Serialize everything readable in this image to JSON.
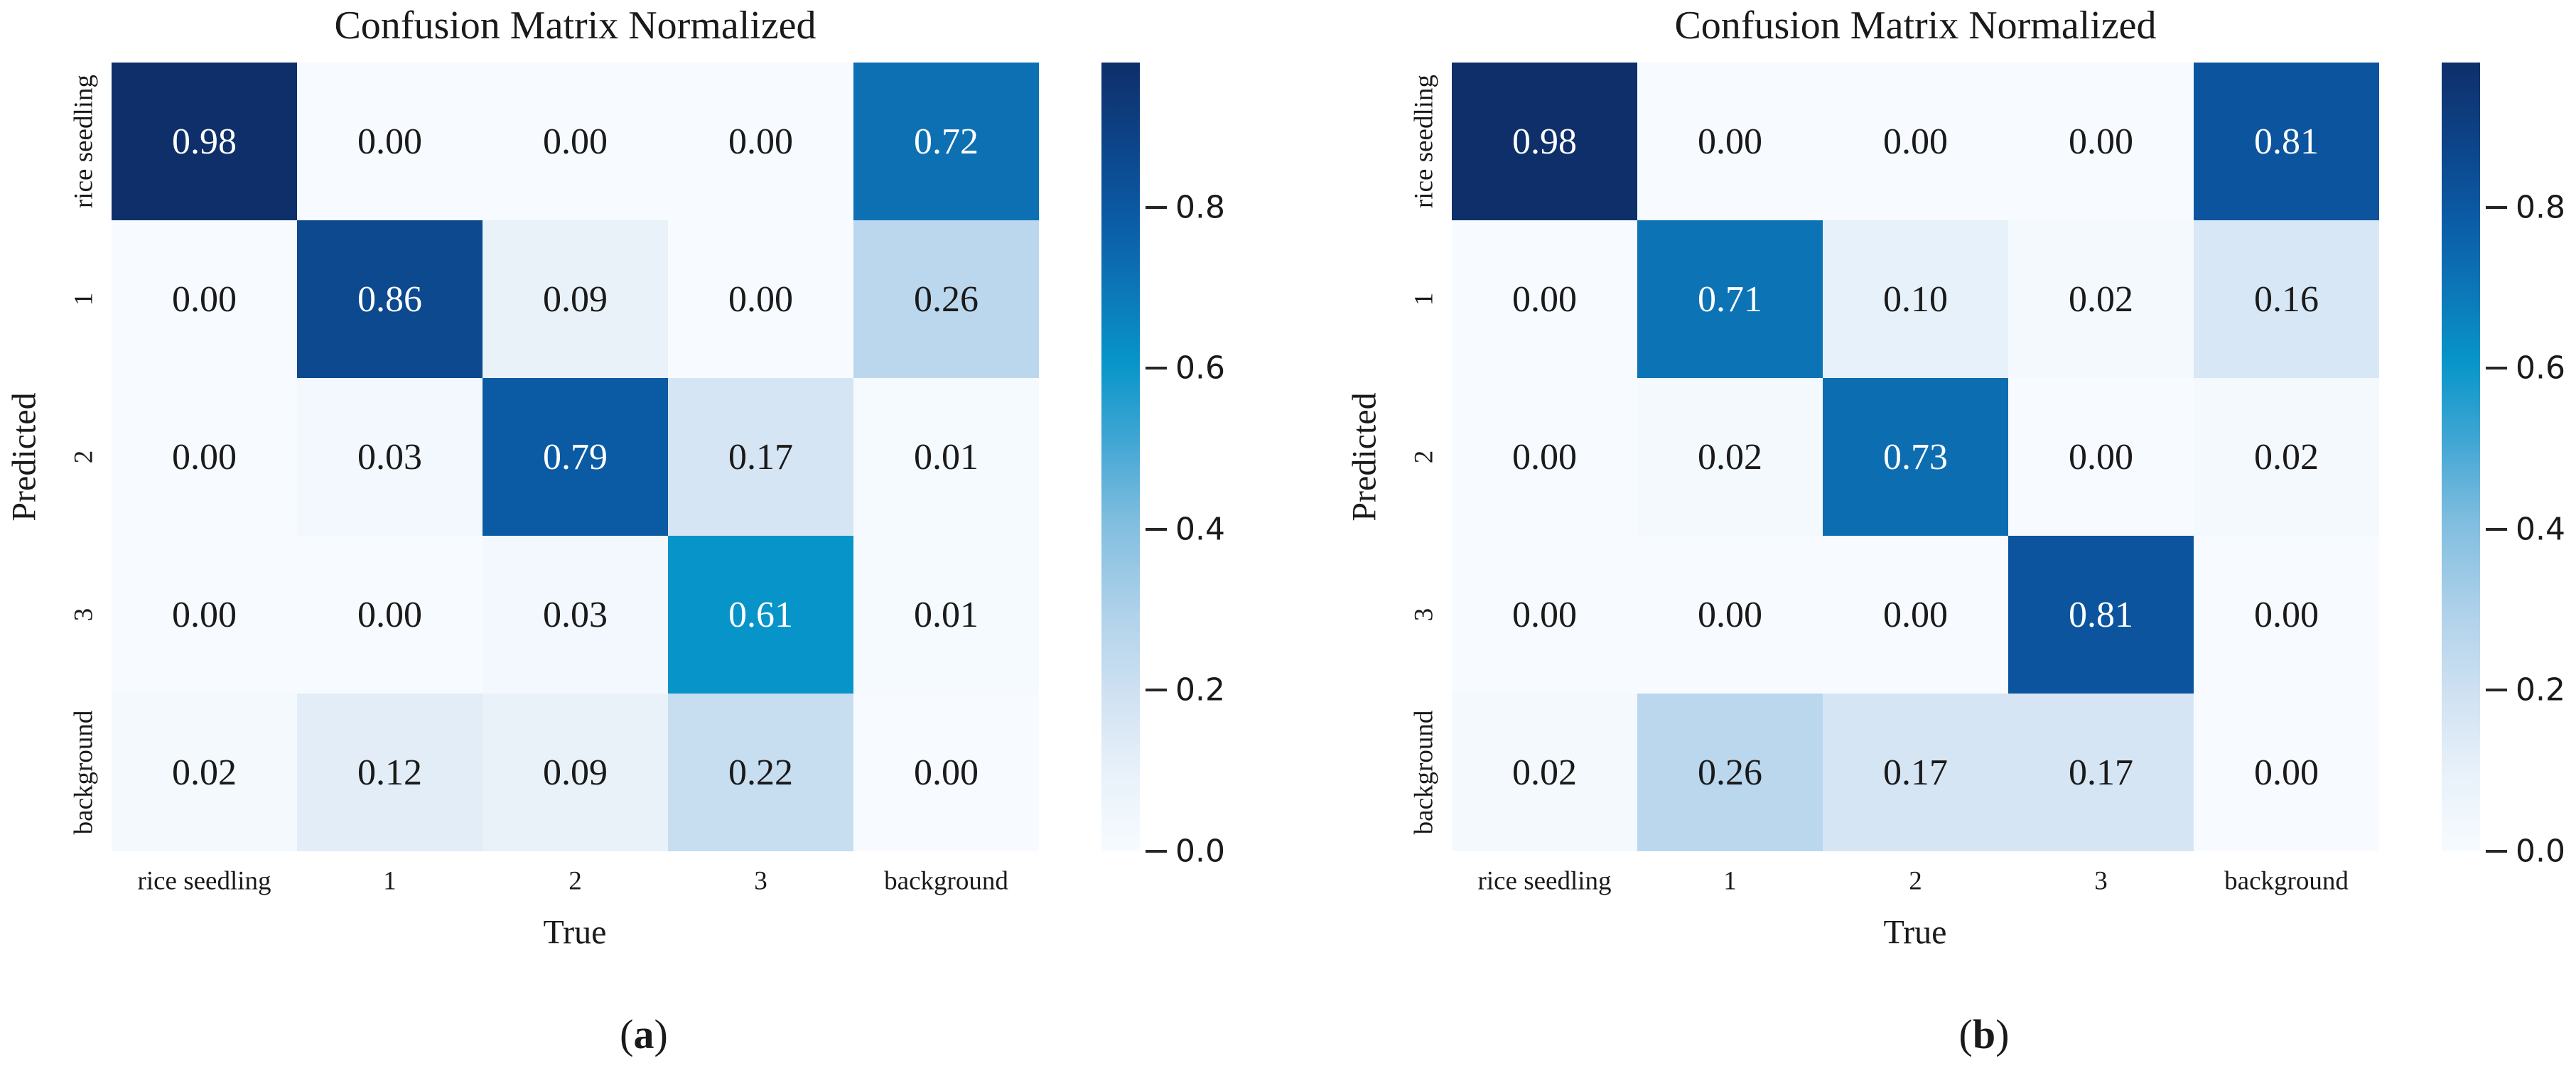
{
  "colormap": {
    "name": "blues-gradient",
    "stops": [
      [
        0.0,
        "#f7fbff"
      ],
      [
        0.1,
        "#e8f1f9"
      ],
      [
        0.2,
        "#cfe1f2"
      ],
      [
        0.3,
        "#b0d2ea"
      ],
      [
        0.42,
        "#7fbddf"
      ],
      [
        0.52,
        "#41a6d4"
      ],
      [
        0.62,
        "#0795c9"
      ],
      [
        0.72,
        "#0c74b6"
      ],
      [
        0.8,
        "#0b5ca6"
      ],
      [
        0.9,
        "#0d4388"
      ],
      [
        1.0,
        "#0e2f6a"
      ]
    ]
  },
  "text_color": "#1a1a1a",
  "cell_text_light": "#ffffff",
  "chart_data": [
    {
      "type": "heatmap",
      "title": "Confusion Matrix Normalized",
      "xlabel": "True",
      "ylabel": "Predicted",
      "categories": [
        "rice seedling",
        "1",
        "2",
        "3",
        "background"
      ],
      "rows": [
        [
          0.98,
          0.0,
          0.0,
          0.0,
          0.72
        ],
        [
          0.0,
          0.86,
          0.09,
          0.0,
          0.26
        ],
        [
          0.0,
          0.03,
          0.79,
          0.17,
          0.01
        ],
        [
          0.0,
          0.0,
          0.03,
          0.61,
          0.01
        ],
        [
          0.02,
          0.12,
          0.09,
          0.22,
          0.0
        ]
      ],
      "vmin": 0,
      "vmax": 0.98,
      "colorbar_ticks": [
        0.8,
        0.6,
        0.4,
        0.2,
        0.0
      ],
      "caption_open": "(",
      "caption_letter": "a",
      "caption_close": ")"
    },
    {
      "type": "heatmap",
      "title": "Confusion Matrix Normalized",
      "xlabel": "True",
      "ylabel": "Predicted",
      "categories": [
        "rice seedling",
        "1",
        "2",
        "3",
        "background"
      ],
      "rows": [
        [
          0.98,
          0.0,
          0.0,
          0.0,
          0.81
        ],
        [
          0.0,
          0.71,
          0.1,
          0.02,
          0.16
        ],
        [
          0.0,
          0.02,
          0.73,
          0.0,
          0.02
        ],
        [
          0.0,
          0.0,
          0.0,
          0.81,
          0.0
        ],
        [
          0.02,
          0.26,
          0.17,
          0.17,
          0.0
        ]
      ],
      "vmin": 0,
      "vmax": 0.98,
      "colorbar_ticks": [
        0.8,
        0.6,
        0.4,
        0.2,
        0.0
      ],
      "caption_open": "(",
      "caption_letter": "b",
      "caption_close": ")"
    }
  ]
}
